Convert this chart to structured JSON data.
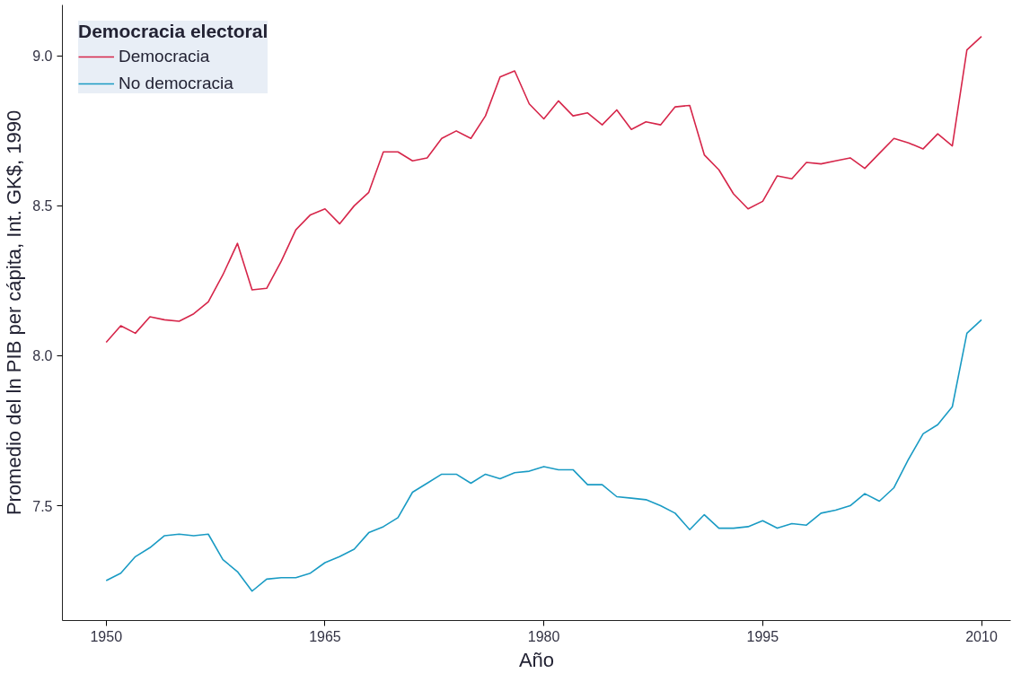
{
  "chart_data": {
    "type": "line",
    "xlabel": "Año",
    "ylabel": "Promedio del ln PIB per cápita, Int. GK$, 1990",
    "legend_title": "Democracia electoral",
    "legend": "top left",
    "grid": false,
    "marker": "none",
    "line_style": "solid",
    "x": [
      1950,
      1951,
      1952,
      1953,
      1954,
      1955,
      1956,
      1957,
      1958,
      1959,
      1960,
      1961,
      1962,
      1963,
      1964,
      1965,
      1966,
      1967,
      1968,
      1969,
      1970,
      1971,
      1972,
      1973,
      1974,
      1975,
      1976,
      1977,
      1978,
      1979,
      1980,
      1981,
      1982,
      1983,
      1984,
      1985,
      1986,
      1987,
      1988,
      1989,
      1990,
      1991,
      1992,
      1993,
      1994,
      1995,
      1996,
      1997,
      1998,
      1999,
      2000,
      2001,
      2002,
      2003,
      2004,
      2005,
      2006,
      2007,
      2008,
      2009,
      2010
    ],
    "xlim": [
      1947,
      2012
    ],
    "xticks": [
      1950,
      1965,
      1980,
      1995,
      2010
    ],
    "ylim": [
      7.117,
      9.17
    ],
    "yticks": [
      {
        "value": 7.5,
        "label": "7.5"
      },
      {
        "value": 8.0,
        "label": "8.0"
      },
      {
        "value": 8.5,
        "label": "8.5"
      },
      {
        "value": 9.0,
        "label": "9.0"
      }
    ],
    "series": [
      {
        "name": "Democracia",
        "color": "#d6264a",
        "values": [
          8.045,
          8.1,
          8.075,
          8.13,
          8.12,
          8.115,
          8.14,
          8.18,
          8.27,
          8.375,
          8.22,
          8.225,
          8.315,
          8.42,
          8.47,
          8.49,
          8.44,
          8.5,
          8.545,
          8.68,
          8.68,
          8.65,
          8.66,
          8.725,
          8.75,
          8.725,
          8.8,
          8.93,
          8.95,
          8.84,
          8.79,
          8.85,
          8.8,
          8.81,
          8.77,
          8.82,
          8.755,
          8.78,
          8.77,
          8.83,
          8.835,
          8.67,
          8.62,
          8.54,
          8.49,
          8.515,
          8.6,
          8.59,
          8.645,
          8.64,
          8.65,
          8.66,
          8.625,
          8.675,
          8.725,
          8.71,
          8.69,
          8.74,
          8.7,
          9.02,
          9.065
        ]
      },
      {
        "name": "No democracia",
        "color": "#1a9bc4",
        "values": [
          7.25,
          7.275,
          7.33,
          7.36,
          7.4,
          7.405,
          7.4,
          7.405,
          7.32,
          7.28,
          7.215,
          7.255,
          7.26,
          7.26,
          7.275,
          7.31,
          7.33,
          7.355,
          7.41,
          7.43,
          7.46,
          7.545,
          7.575,
          7.605,
          7.605,
          7.575,
          7.605,
          7.59,
          7.61,
          7.615,
          7.63,
          7.62,
          7.62,
          7.57,
          7.57,
          7.53,
          7.525,
          7.52,
          7.5,
          7.475,
          7.42,
          7.47,
          7.425,
          7.425,
          7.43,
          7.45,
          7.425,
          7.44,
          7.435,
          7.475,
          7.485,
          7.5,
          7.54,
          7.515,
          7.56,
          7.655,
          7.74,
          7.77,
          7.83,
          8.075,
          8.12
        ]
      }
    ]
  }
}
